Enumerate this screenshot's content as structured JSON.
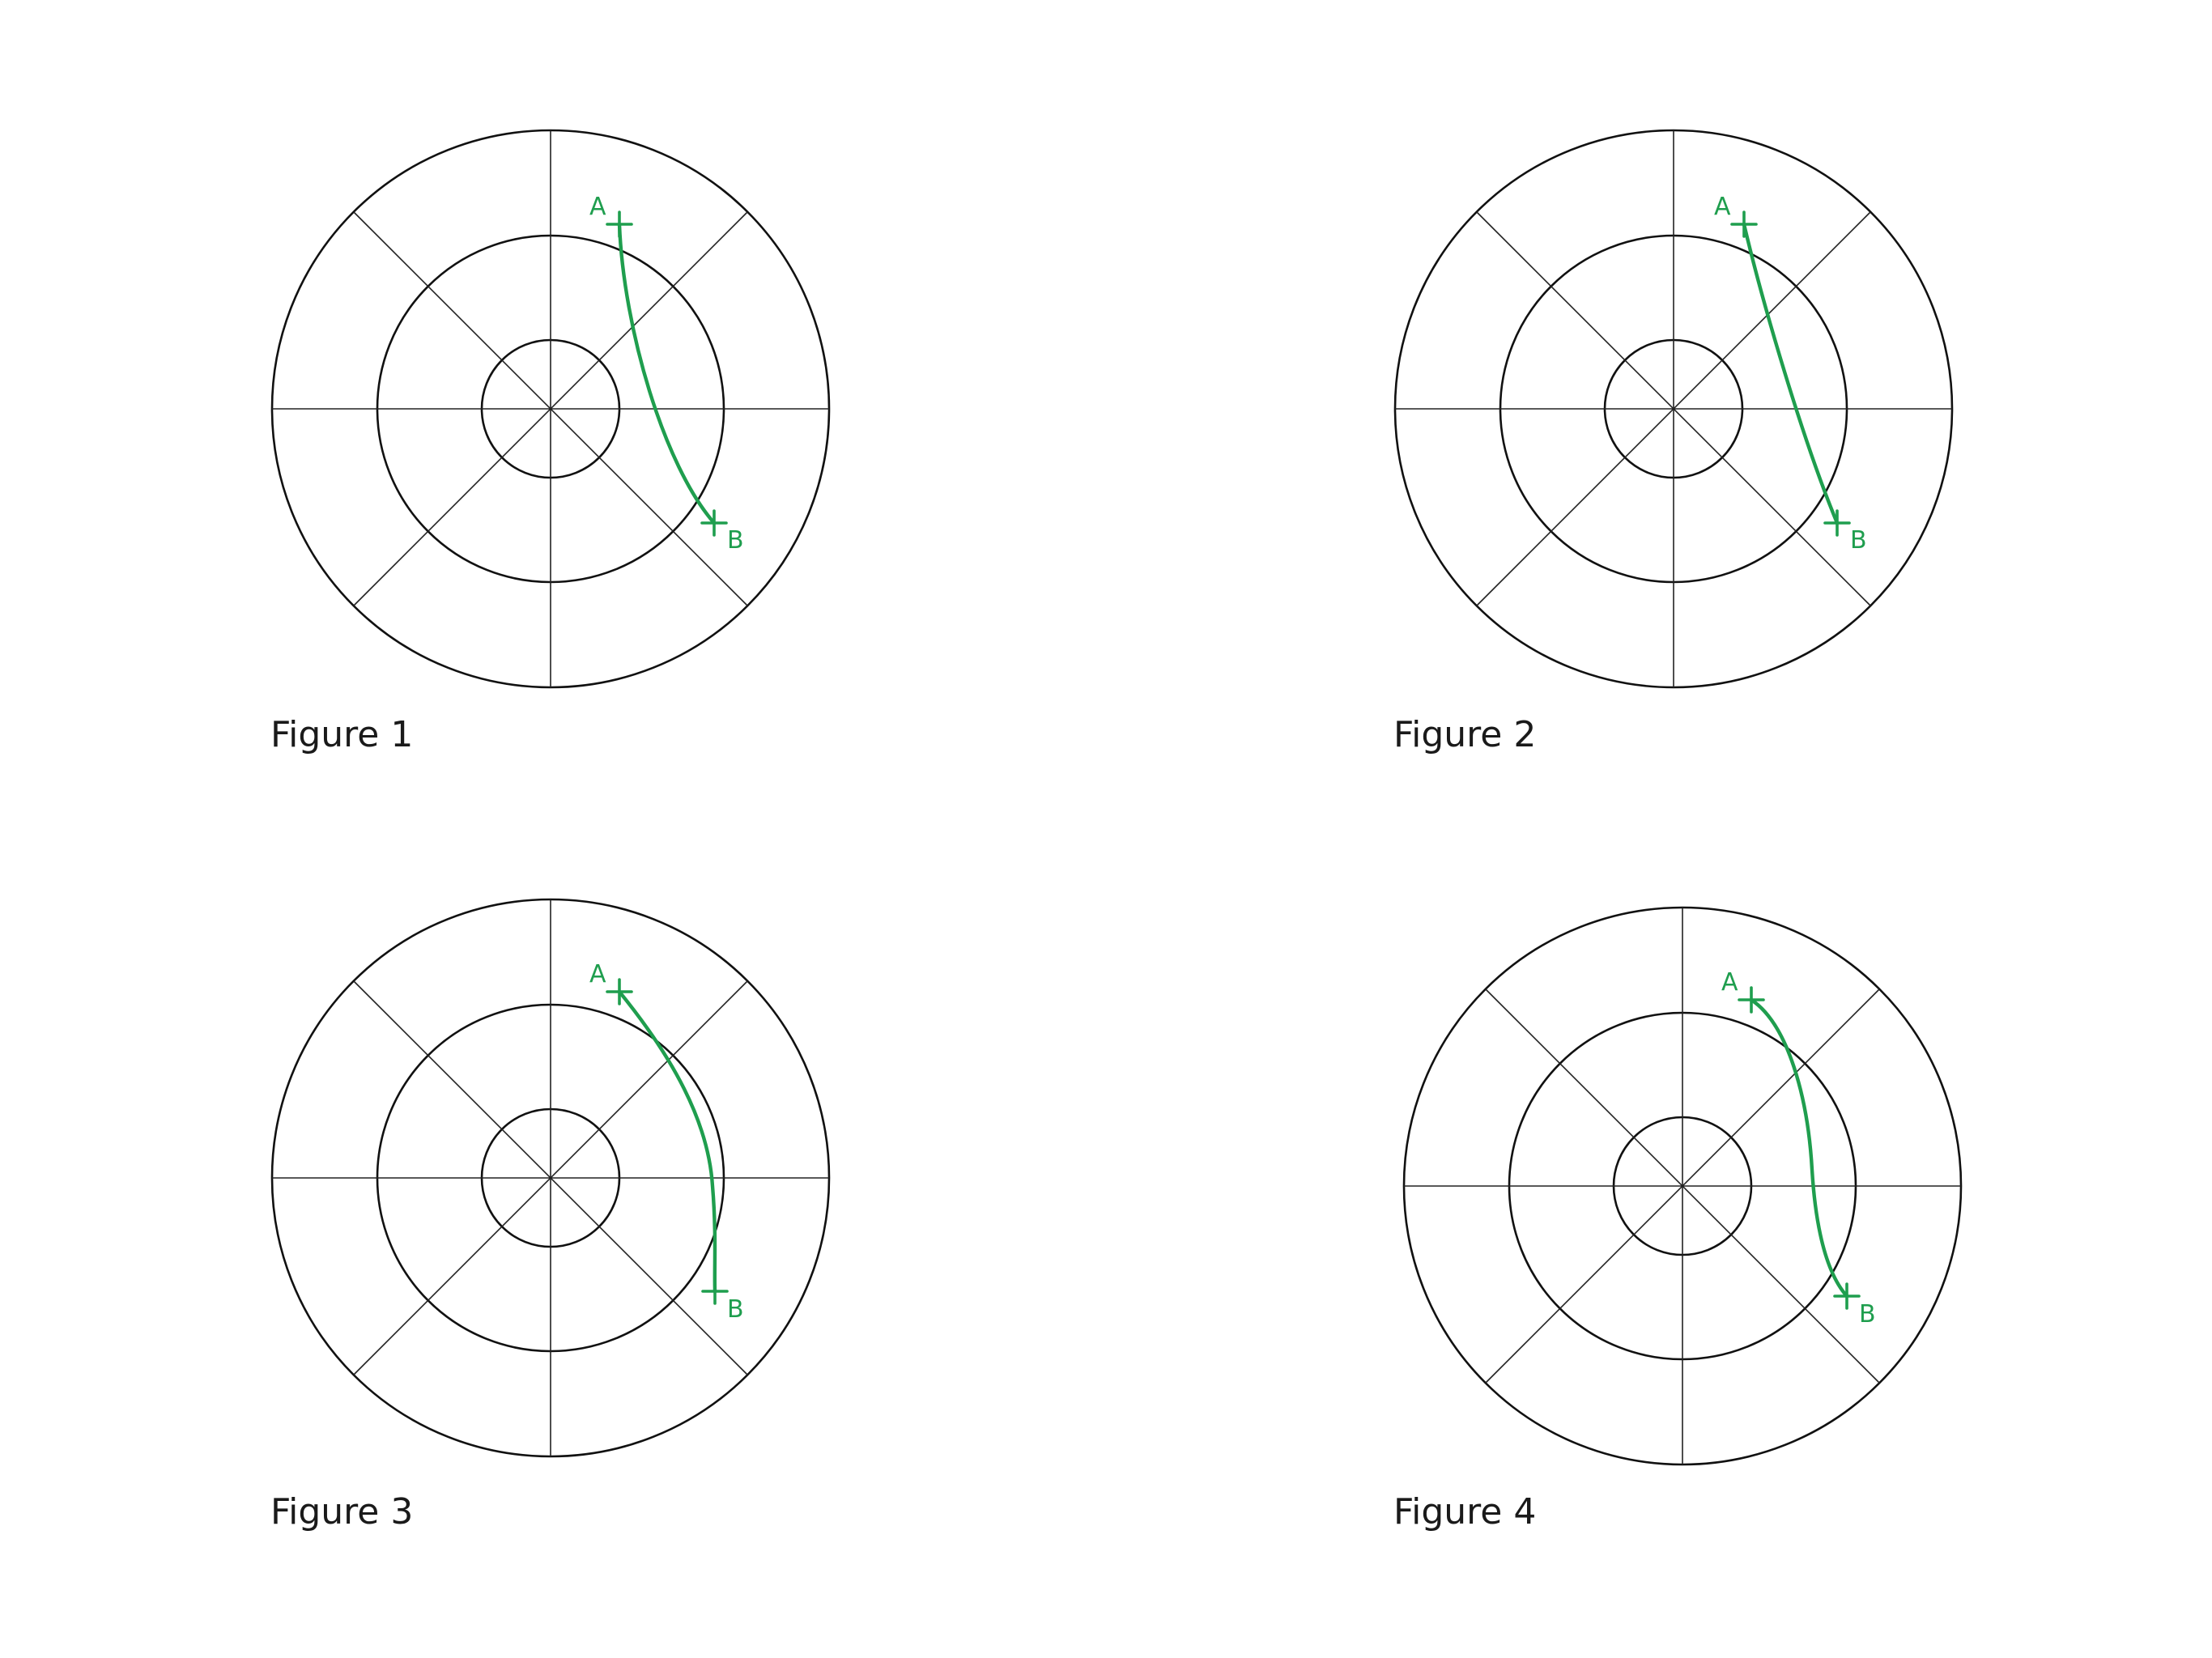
{
  "colors": {
    "path": "#1f9e4e",
    "ink": "#111111",
    "background": "#ffffff"
  },
  "figures": [
    {
      "caption": "Figure 1",
      "point_a": "A",
      "point_b": "B",
      "path_style": "curve-right-bulge"
    },
    {
      "caption": "Figure 2",
      "point_a": "A",
      "point_b": "B",
      "path_style": "near-straight"
    },
    {
      "caption": "Figure 3",
      "point_a": "A",
      "point_b": "B",
      "path_style": "follows-middle-ring"
    },
    {
      "caption": "Figure 4",
      "point_a": "A",
      "point_b": "B",
      "path_style": "s-curve"
    }
  ]
}
